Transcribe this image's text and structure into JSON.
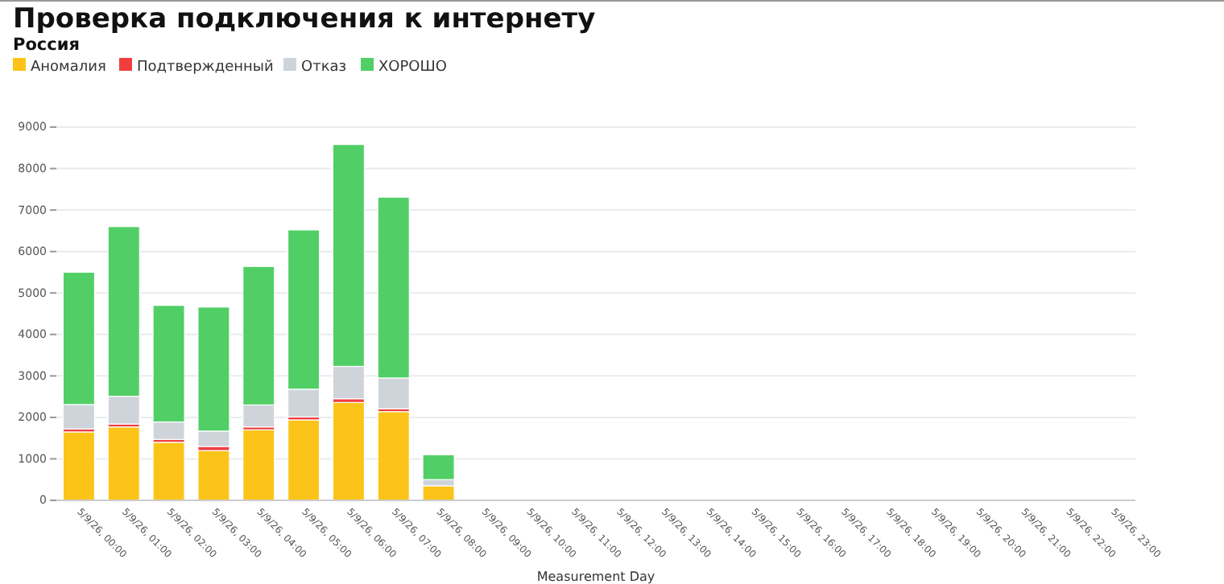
{
  "chart_data": {
    "type": "bar",
    "stacked": true,
    "title": "Проверка подключения к интернету",
    "subtitle": "Россия",
    "xlabel": "Measurement Day",
    "categories": [
      "5/9/26, 00:00",
      "5/9/26, 01:00",
      "5/9/26, 02:00",
      "5/9/26, 03:00",
      "5/9/26, 04:00",
      "5/9/26, 05:00",
      "5/9/26, 06:00",
      "5/9/26, 07:00",
      "5/9/26, 08:00",
      "5/9/26, 09:00",
      "5/9/26, 10:00",
      "5/9/26, 11:00",
      "5/9/26, 12:00",
      "5/9/26, 13:00",
      "5/9/26, 14:00",
      "5/9/26, 15:00",
      "5/9/26, 16:00",
      "5/9/26, 17:00",
      "5/9/26, 18:00",
      "5/9/26, 19:00",
      "5/9/26, 20:00",
      "5/9/26, 21:00",
      "5/9/26, 22:00",
      "5/9/26, 23:00"
    ],
    "series": [
      {
        "name": "Аномалия",
        "color": "#fcc419",
        "values": [
          1650,
          1770,
          1400,
          1200,
          1700,
          1940,
          2360,
          2140,
          350,
          0,
          0,
          0,
          0,
          0,
          0,
          0,
          0,
          0,
          0,
          0,
          0,
          0,
          0,
          0
        ]
      },
      {
        "name": "Подтвержденный",
        "color": "#f03e3e",
        "values": [
          70,
          70,
          70,
          100,
          70,
          70,
          90,
          70,
          0,
          0,
          0,
          0,
          0,
          0,
          0,
          0,
          0,
          0,
          0,
          0,
          0,
          0,
          0,
          0
        ]
      },
      {
        "name": "Отказ",
        "color": "#ced4da",
        "values": [
          590,
          670,
          420,
          370,
          530,
          670,
          780,
          740,
          150,
          0,
          0,
          0,
          0,
          0,
          0,
          0,
          0,
          0,
          0,
          0,
          0,
          0,
          0,
          0
        ]
      },
      {
        "name": "ХОРОШО",
        "color": "#51cf66",
        "values": [
          3190,
          4090,
          2810,
          2990,
          3340,
          3840,
          5350,
          4360,
          600,
          0,
          0,
          0,
          0,
          0,
          0,
          0,
          0,
          0,
          0,
          0,
          0,
          0,
          0,
          0
        ]
      }
    ],
    "ylim": [
      0,
      9000
    ],
    "yticks": [
      0,
      1000,
      2000,
      3000,
      4000,
      5000,
      6000,
      7000,
      8000,
      9000
    ],
    "grid": "y",
    "legend": "top left"
  }
}
